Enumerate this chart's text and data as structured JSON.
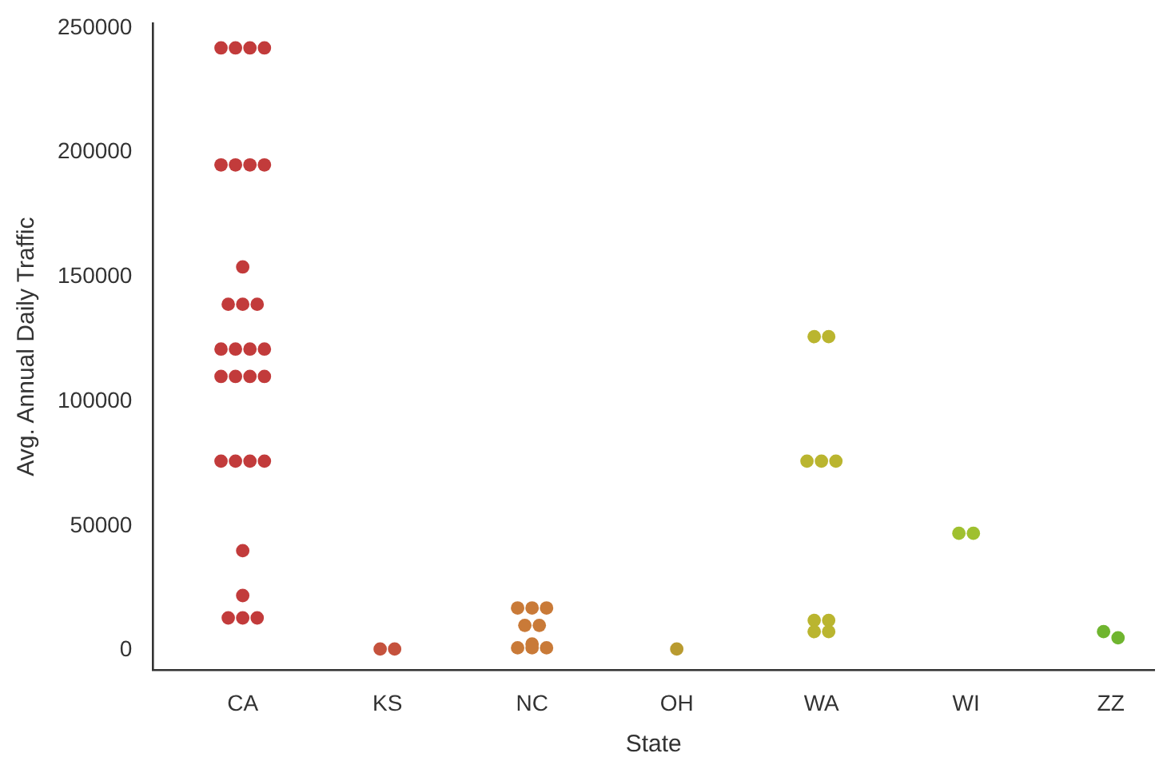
{
  "chart_data": {
    "type": "scatter",
    "xlabel": "State",
    "ylabel": "Avg. Annual Daily Traffic",
    "categories": [
      "CA",
      "KS",
      "NC",
      "OH",
      "WA",
      "WI",
      "ZZ"
    ],
    "ylim": [
      -8000,
      252000
    ],
    "yticks": [
      0,
      50000,
      100000,
      150000,
      200000,
      250000
    ],
    "grid": false,
    "legend": false,
    "marker": "circle",
    "series": [
      {
        "color": "#c23b3b",
        "x": [
          "CA",
          "CA",
          "CA",
          "CA",
          "CA",
          "CA",
          "CA",
          "CA",
          "CA",
          "CA",
          "CA",
          "CA",
          "CA",
          "CA",
          "CA",
          "CA",
          "CA",
          "CA",
          "CA",
          "CA",
          "CA",
          "CA",
          "CA",
          "CA",
          "CA",
          "CA",
          "CA",
          "CA",
          "CA"
        ],
        "values": [
          242000,
          242000,
          242000,
          242000,
          195000,
          195000,
          195000,
          195000,
          154000,
          139000,
          139000,
          139000,
          121000,
          121000,
          121000,
          121000,
          110000,
          110000,
          110000,
          110000,
          76000,
          76000,
          76000,
          76000,
          40000,
          22000,
          13000,
          13000,
          13000
        ]
      },
      {
        "color": "#c5523d",
        "x": [
          "KS",
          "KS"
        ],
        "values": [
          500,
          500
        ]
      },
      {
        "color": "#c97a38",
        "x": [
          "NC",
          "NC",
          "NC",
          "NC",
          "NC",
          "NC",
          "NC",
          "NC",
          "NC"
        ],
        "values": [
          17000,
          17000,
          17000,
          10000,
          10000,
          2500,
          1000,
          1000,
          1000
        ]
      },
      {
        "color": "#b99b30",
        "x": [
          "OH"
        ],
        "values": [
          500
        ]
      },
      {
        "color": "#bab52f",
        "x": [
          "WA",
          "WA",
          "WA",
          "WA",
          "WA",
          "WA",
          "WA",
          "WA",
          "WA"
        ],
        "values": [
          126000,
          126000,
          76000,
          76000,
          76000,
          12000,
          12000,
          7500,
          7500
        ]
      },
      {
        "color": "#9fc02f",
        "x": [
          "WI",
          "WI"
        ],
        "values": [
          47000,
          47000
        ]
      },
      {
        "color": "#6fb52f",
        "x": [
          "ZZ",
          "ZZ"
        ],
        "values": [
          7500,
          5000
        ]
      }
    ]
  }
}
